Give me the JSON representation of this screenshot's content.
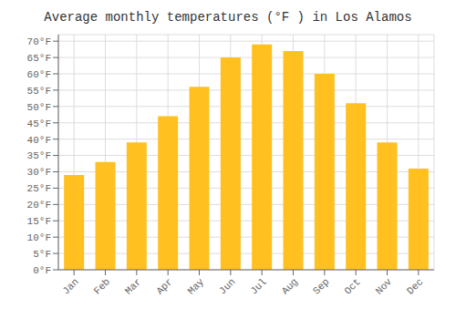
{
  "chart_data": {
    "type": "bar",
    "title": "Average monthly temperatures (°F ) in Los Alamos",
    "categories": [
      "Jan",
      "Feb",
      "Mar",
      "Apr",
      "May",
      "Jun",
      "Jul",
      "Aug",
      "Sep",
      "Oct",
      "Nov",
      "Dec"
    ],
    "values": [
      29,
      33,
      39,
      47,
      56,
      65,
      69,
      67,
      60,
      51,
      39,
      31
    ],
    "color": "#FFC020",
    "ylim": [
      0,
      72
    ],
    "yticks": [
      {
        "value": 0,
        "label": "0°F"
      },
      {
        "value": 5,
        "label": "5°F"
      },
      {
        "value": 10,
        "label": "10°F"
      },
      {
        "value": 15,
        "label": "15°F"
      },
      {
        "value": 20,
        "label": "20°F"
      },
      {
        "value": 25,
        "label": "25°F"
      },
      {
        "value": 30,
        "label": "30°F"
      },
      {
        "value": 35,
        "label": "35°F"
      },
      {
        "value": 40,
        "label": "40°F"
      },
      {
        "value": 45,
        "label": "45°F"
      },
      {
        "value": 50,
        "label": "50°F"
      },
      {
        "value": 55,
        "label": "55°F"
      },
      {
        "value": 60,
        "label": "60°F"
      },
      {
        "value": 65,
        "label": "65°F"
      },
      {
        "value": 70,
        "label": "70°F"
      }
    ],
    "grid": true
  }
}
